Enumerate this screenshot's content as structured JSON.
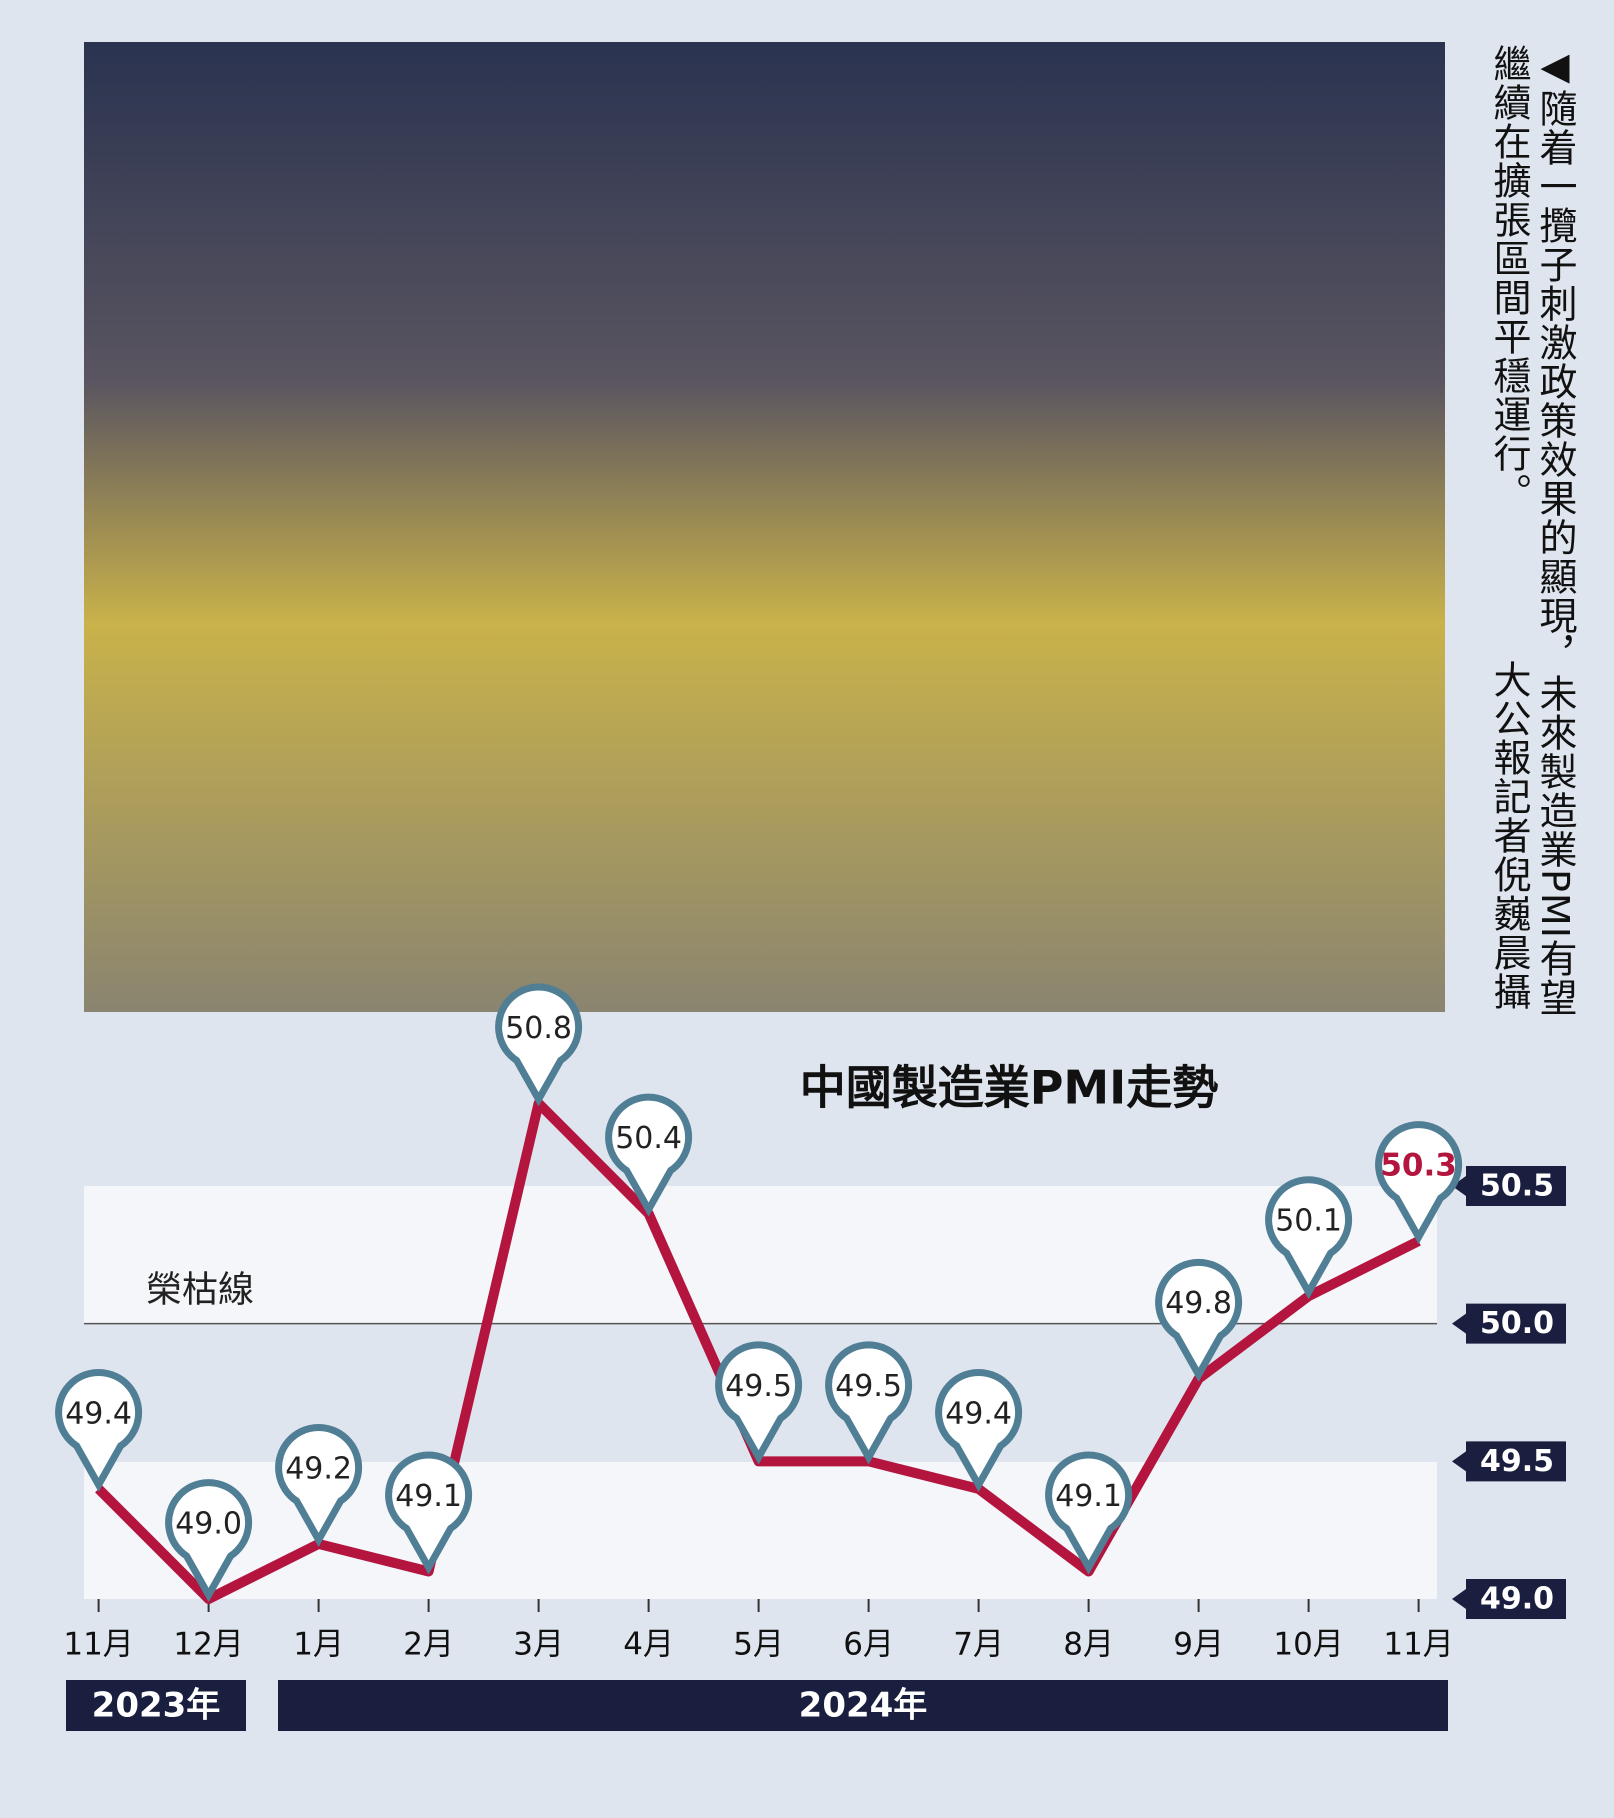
{
  "caption": "◀隨着一攬子刺激政策效果的顯現，未來製造業PMI有望繼續在擴張區間平穩運行。",
  "credit": "大公報記者倪巍晨攝",
  "chart_data": {
    "type": "line",
    "title": "中國製造業PMI走勢",
    "categories": [
      "11月",
      "12月",
      "1月",
      "2月",
      "3月",
      "4月",
      "5月",
      "6月",
      "7月",
      "8月",
      "9月",
      "10月",
      "11月"
    ],
    "year_labels": [
      "2023年",
      "2024年"
    ],
    "series": [
      {
        "name": "PMI",
        "color": "#b3153f",
        "marker_color": "#4f7e95",
        "highlight_color": "#b3153f",
        "values": [
          49.4,
          49.0,
          49.2,
          49.1,
          50.8,
          50.4,
          49.5,
          49.5,
          49.4,
          49.1,
          49.8,
          50.1,
          50.3
        ],
        "value_labels": [
          "49.4",
          "49.0",
          "49.2",
          "49.1",
          "50.8",
          "50.4",
          "49.5",
          "49.5",
          "49.4",
          "49.1",
          "49.8",
          "50.1",
          "50.3"
        ]
      }
    ],
    "ylim": [
      49.0,
      50.5
    ],
    "yticks": [
      {
        "value": 49,
        "label": "49.0"
      },
      49.5,
      {
        "value": 50,
        "label": "50.0"
      },
      50.5
    ],
    "reference_line": {
      "label": "榮枯線",
      "value": 50
    }
  }
}
